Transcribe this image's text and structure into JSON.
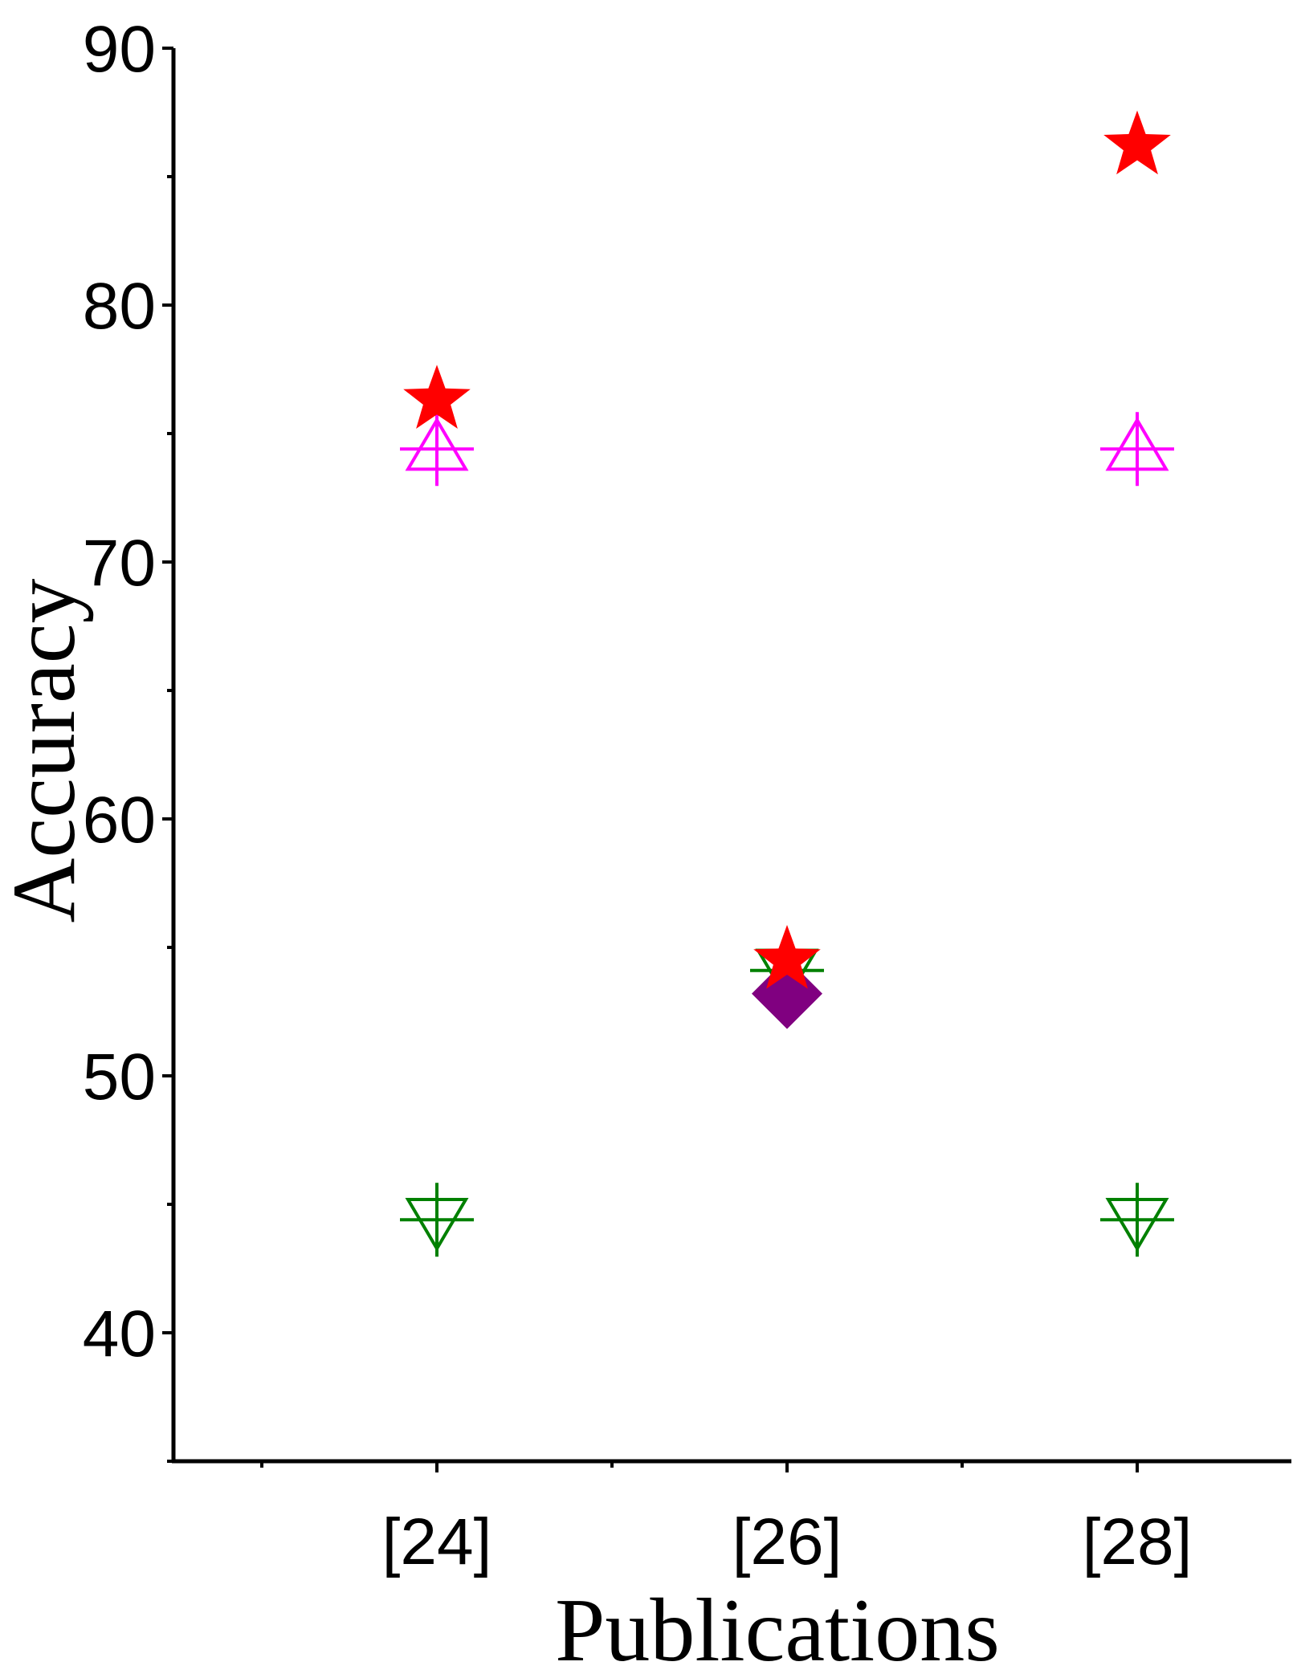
{
  "chart_data": {
    "type": "scatter",
    "xlabel": "Publications",
    "ylabel": "Accuracy",
    "categories": [
      "[24]",
      "[26]",
      "[28]"
    ],
    "ylim": [
      35,
      90
    ],
    "yticks": [
      40,
      50,
      60,
      70,
      80,
      90
    ],
    "grid": false,
    "legend": "none",
    "series": [
      {
        "marker": "star",
        "color": "#ff0000",
        "values": [
          76.3,
          54.5,
          86.2
        ]
      },
      {
        "marker": "triangle-up-cross",
        "color": "#ff00ff",
        "values": [
          74.4,
          null,
          74.4
        ]
      },
      {
        "marker": "triangle-down-cross",
        "color": "#008000",
        "values": [
          44.4,
          54.1,
          44.4
        ]
      },
      {
        "marker": "diamond",
        "color": "#800080",
        "values": [
          null,
          53.2,
          null
        ]
      }
    ]
  }
}
